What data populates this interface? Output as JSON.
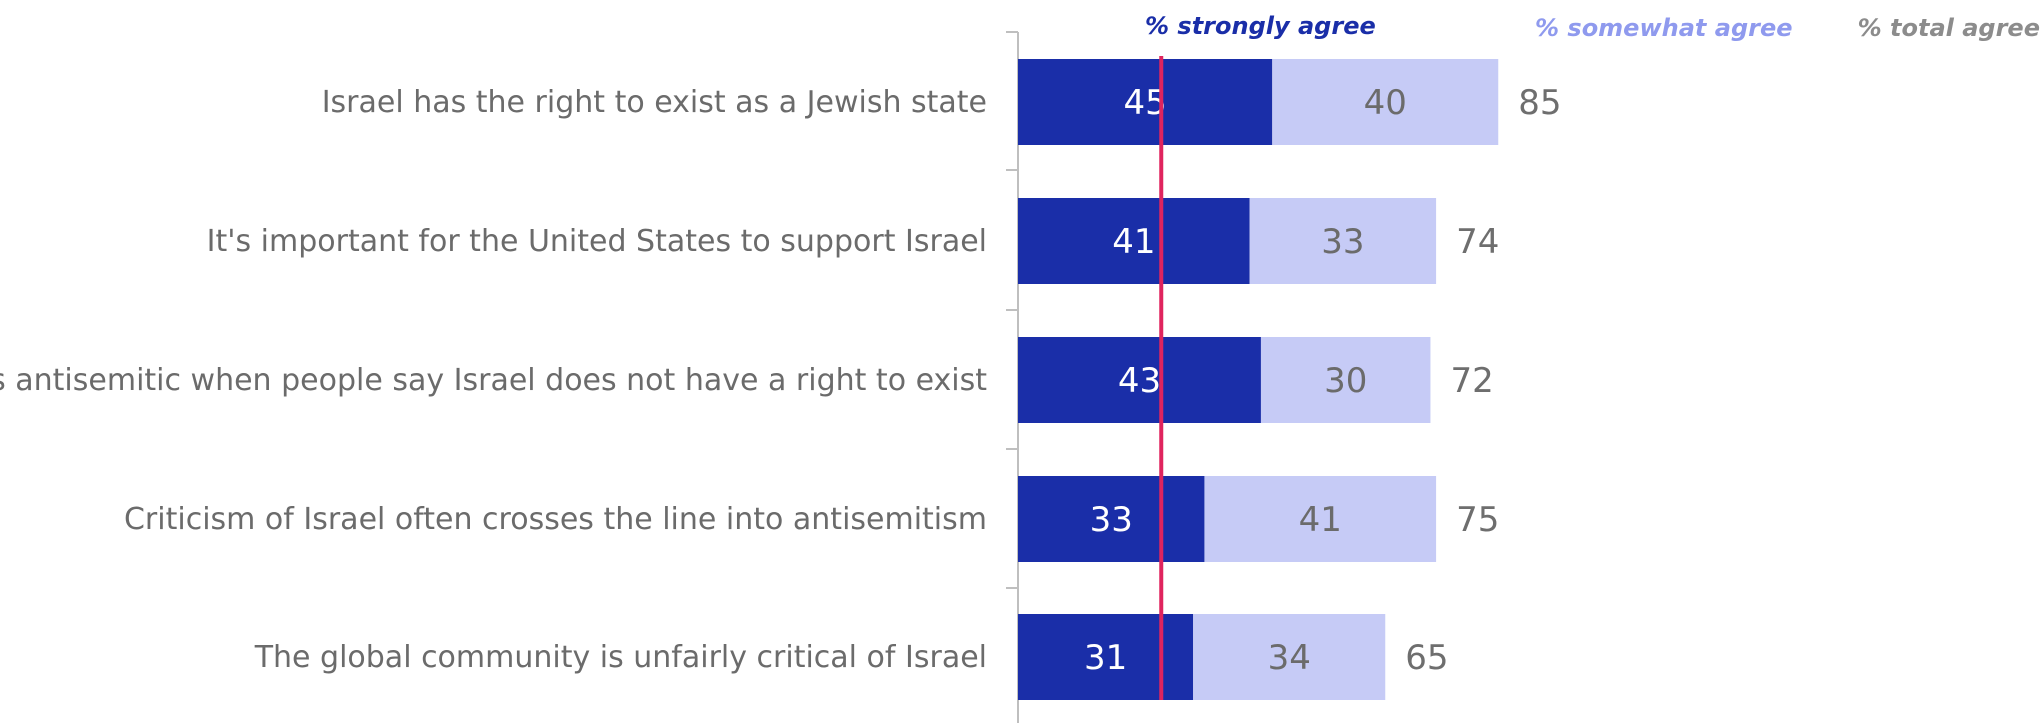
{
  "colors": {
    "strongly": "#1a2ea8",
    "somewhat": "#c6cbf6",
    "total_text": "#6e6e6e",
    "strongly_text": "#ffffff",
    "somewhat_text": "#6b6b6b",
    "axis": "#bfbfbf",
    "reference_line": "#e0245e",
    "category_text": "#6b6b6b",
    "header_strongly": "#1a2ea8",
    "header_somewhat": "#8f9aee",
    "header_total": "#8c8c8c"
  },
  "chart_data": {
    "type": "bar",
    "orientation": "horizontal",
    "stacked": true,
    "title": "",
    "xlabel": "",
    "ylabel": "",
    "xlim": [
      0,
      100
    ],
    "grid": false,
    "legend": "top",
    "headers": {
      "strongly": "%  strongly agree",
      "somewhat": "% somewhat agree",
      "total": "% total agree"
    },
    "categories": [
      "Israel has the right to exist as a Jewish state",
      "It's important for the United States to support Israel",
      "It's antisemitic when people say Israel does not have a right to exist",
      "Criticism of Israel often crosses the line into antisemitism",
      "The global community is unfairly critical of Israel"
    ],
    "series": [
      {
        "name": "% strongly agree",
        "values": [
          45,
          41,
          43,
          33,
          31
        ]
      },
      {
        "name": "% somewhat agree",
        "values": [
          40,
          33,
          30,
          41,
          34
        ]
      }
    ],
    "totals": [
      85,
      74,
      72,
      75,
      65
    ],
    "reference_line_value": 25
  }
}
